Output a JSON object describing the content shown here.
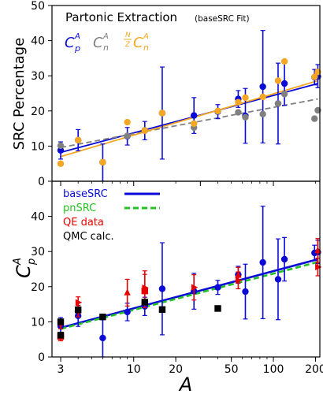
{
  "chart_data": [
    {
      "type": "scatter",
      "panel": "top",
      "title": "Partonic Extraction",
      "subtitle": "(baseSRC Fit)",
      "ylabel": "SRC Percentage",
      "xlabel": "",
      "xscale": "log",
      "xlim": [
        2.6,
        215
      ],
      "ylim": [
        0,
        50
      ],
      "yticks": [
        0,
        10,
        20,
        30,
        40,
        50
      ],
      "xticks": [
        3,
        10,
        30,
        100
      ],
      "legend": [
        "C",
        "C",
        "N/Z C"
      ],
      "legend_placement": "top-left",
      "series": [
        {
          "color": "#0a0ad6",
          "points": [
            {
              "x": 3,
              "y": 8.8,
              "lo": 6.3,
              "hi": 11.2
            },
            {
              "x": 4,
              "y": 11.7,
              "lo": 8.7,
              "hi": 14.7
            },
            {
              "x": 6,
              "y": 5.4,
              "lo": 0,
              "hi": 10.6
            },
            {
              "x": 9,
              "y": 12.8,
              "lo": 10.3,
              "hi": 15.3
            },
            {
              "x": 12,
              "y": 14.4,
              "lo": 11.8,
              "hi": 17.0
            },
            {
              "x": 16,
              "y": 19.4,
              "lo": 6.3,
              "hi": 32.5
            },
            {
              "x": 27,
              "y": 18.7,
              "lo": 13.6,
              "hi": 23.8
            },
            {
              "x": 40,
              "y": 19.8,
              "lo": 17.8,
              "hi": 21.8
            },
            {
              "x": 56,
              "y": 23.4,
              "lo": 21.0,
              "hi": 25.8
            },
            {
              "x": 63,
              "y": 18.6,
              "lo": 10.8,
              "hi": 26.4
            },
            {
              "x": 84,
              "y": 26.9,
              "lo": 10.9,
              "hi": 42.9
            },
            {
              "x": 108,
              "y": 22.1,
              "lo": 10.6,
              "hi": 33.6
            },
            {
              "x": 120,
              "y": 27.8,
              "lo": 21.6,
              "hi": 34.0
            },
            {
              "x": 197,
              "y": 29.6,
              "lo": 27.4,
              "hi": 31.8
            },
            {
              "x": 208,
              "y": 29.8,
              "lo": 26.6,
              "hi": 33.2
            }
          ],
          "fit": [
            [
              3,
              8.2
            ],
            [
              208,
              27.8
            ]
          ]
        },
        {
          "color": "#808080",
          "dashed": true,
          "points": [
            {
              "x": 3,
              "y": 10.1
            },
            {
              "x": 4,
              "y": 11.7
            },
            {
              "x": 6,
              "y": 5.4
            },
            {
              "x": 9,
              "y": 12.9
            },
            {
              "x": 12,
              "y": 14.5
            },
            {
              "x": 16,
              "y": 19.4
            },
            {
              "x": 27,
              "y": 15.3
            },
            {
              "x": 40,
              "y": 19.9
            },
            {
              "x": 56,
              "y": 19.6
            },
            {
              "x": 63,
              "y": 18.2
            },
            {
              "x": 84,
              "y": 19.1
            },
            {
              "x": 108,
              "y": 22.1
            },
            {
              "x": 120,
              "y": 24.8
            },
            {
              "x": 197,
              "y": 17.8
            },
            {
              "x": 208,
              "y": 20.2
            }
          ],
          "fit": [
            [
              3,
              9.6
            ],
            [
              208,
              23.4
            ]
          ]
        },
        {
          "color": "#f5a623",
          "points": [
            {
              "x": 3,
              "y": 5.0
            },
            {
              "x": 4,
              "y": 11.7
            },
            {
              "x": 6,
              "y": 5.4
            },
            {
              "x": 9,
              "y": 16.8
            },
            {
              "x": 12,
              "y": 14.4
            },
            {
              "x": 16,
              "y": 19.4
            },
            {
              "x": 27,
              "y": 16.4
            },
            {
              "x": 40,
              "y": 20.0
            },
            {
              "x": 56,
              "y": 22.5
            },
            {
              "x": 63,
              "y": 23.8
            },
            {
              "x": 84,
              "y": 24.0
            },
            {
              "x": 108,
              "y": 28.6
            },
            {
              "x": 120,
              "y": 34.1
            },
            {
              "x": 197,
              "y": 29.7
            },
            {
              "x": 208,
              "y": 31.1
            }
          ],
          "fit": [
            [
              3,
              7.0
            ],
            [
              208,
              28.6
            ]
          ]
        }
      ]
    },
    {
      "type": "scatter",
      "panel": "bottom",
      "xlabel": "A",
      "ylabel": "C",
      "xscale": "log",
      "xlim": [
        2.6,
        215
      ],
      "ylim": [
        0,
        50
      ],
      "yticks": [
        0,
        10,
        20,
        30,
        40
      ],
      "xticks": [
        3,
        10,
        20,
        50,
        100,
        200
      ],
      "legend": [
        "baseSRC",
        "pnSRC",
        "QE data",
        "QMC calc."
      ],
      "legend_placement": "top-left",
      "series": [
        {
          "name": "baseSRC",
          "color": "#0a0ad6",
          "points": [
            {
              "x": 3,
              "y": 8.8,
              "lo": 6.3,
              "hi": 11.2
            },
            {
              "x": 4,
              "y": 11.7,
              "lo": 8.7,
              "hi": 14.7
            },
            {
              "x": 6,
              "y": 5.4,
              "lo": 0,
              "hi": 10.6
            },
            {
              "x": 9,
              "y": 12.8,
              "lo": 10.3,
              "hi": 15.3
            },
            {
              "x": 12,
              "y": 14.4,
              "lo": 11.8,
              "hi": 17.0
            },
            {
              "x": 16,
              "y": 19.4,
              "lo": 6.3,
              "hi": 32.5
            },
            {
              "x": 27,
              "y": 18.7,
              "lo": 13.6,
              "hi": 23.8
            },
            {
              "x": 40,
              "y": 19.8,
              "lo": 17.8,
              "hi": 21.8
            },
            {
              "x": 56,
              "y": 23.4,
              "lo": 21.0,
              "hi": 25.8
            },
            {
              "x": 63,
              "y": 18.6,
              "lo": 10.8,
              "hi": 26.4
            },
            {
              "x": 84,
              "y": 26.9,
              "lo": 10.9,
              "hi": 42.9
            },
            {
              "x": 108,
              "y": 22.1,
              "lo": 10.6,
              "hi": 33.6
            },
            {
              "x": 120,
              "y": 27.8,
              "lo": 21.6,
              "hi": 34.0
            },
            {
              "x": 197,
              "y": 29.6,
              "lo": 27.4,
              "hi": 31.8
            },
            {
              "x": 208,
              "y": 29.8,
              "lo": 26.6,
              "hi": 33.2
            }
          ],
          "fit": [
            [
              3,
              8.3
            ],
            [
              208,
              27.8
            ]
          ]
        },
        {
          "name": "pnSRC",
          "color": "#22c322",
          "dashed": true,
          "fit": [
            [
              3,
              8.0
            ],
            [
              208,
              27.0
            ]
          ]
        },
        {
          "name": "QE data",
          "color": "#e60000",
          "points": [
            {
              "x": 3,
              "y": 5.8,
              "lo": 4.6,
              "hi": 7.0,
              "marker": "square"
            },
            {
              "x": 3,
              "y": 9.2,
              "lo": 8.0,
              "hi": 10.4,
              "marker": "triangle-down"
            },
            {
              "x": 4,
              "y": 13.0,
              "lo": 11.4,
              "hi": 14.6,
              "marker": "triangle-left"
            },
            {
              "x": 4,
              "y": 15.5,
              "lo": 13.9,
              "hi": 17.1,
              "marker": "triangle-right"
            },
            {
              "x": 9,
              "y": 18.3,
              "lo": 14.5,
              "hi": 22.1,
              "marker": "triangle-up"
            },
            {
              "x": 12,
              "y": 18.8,
              "lo": 14.0,
              "hi": 23.5,
              "marker": "square"
            },
            {
              "x": 12,
              "y": 19.7,
              "lo": 14.9,
              "hi": 24.5,
              "marker": "triangle-right"
            },
            {
              "x": 27,
              "y": 19.8,
              "lo": 16.2,
              "hi": 23.4,
              "marker": "triangle-right"
            },
            {
              "x": 56,
              "y": 21.8,
              "lo": 19.4,
              "hi": 24.2,
              "marker": "triangle-right"
            },
            {
              "x": 56,
              "y": 23.3,
              "lo": 21.1,
              "hi": 25.5,
              "marker": "triangle-up"
            },
            {
              "x": 208,
              "y": 25.6,
              "lo": 23.1,
              "hi": 28.1,
              "marker": "triangle-right"
            },
            {
              "x": 208,
              "y": 30.3,
              "lo": 26.9,
              "hi": 33.7,
              "marker": "triangle-up"
            }
          ]
        },
        {
          "name": "QMC calc.",
          "color": "#000000",
          "points": [
            {
              "x": 3,
              "y": 10.0,
              "lo": 9.4,
              "hi": 10.6
            },
            {
              "x": 3,
              "y": 6.2,
              "lo": 5.6,
              "hi": 6.8
            },
            {
              "x": 4,
              "y": 13.4,
              "lo": 12.8,
              "hi": 14.0
            },
            {
              "x": 6,
              "y": 11.4,
              "lo": 10.8,
              "hi": 12.0
            },
            {
              "x": 12,
              "y": 15.6,
              "lo": 15.0,
              "hi": 16.2
            },
            {
              "x": 16,
              "y": 13.5,
              "lo": 12.9,
              "hi": 14.1
            },
            {
              "x": 40,
              "y": 13.8,
              "lo": 13.2,
              "hi": 14.4
            }
          ]
        }
      ]
    }
  ]
}
